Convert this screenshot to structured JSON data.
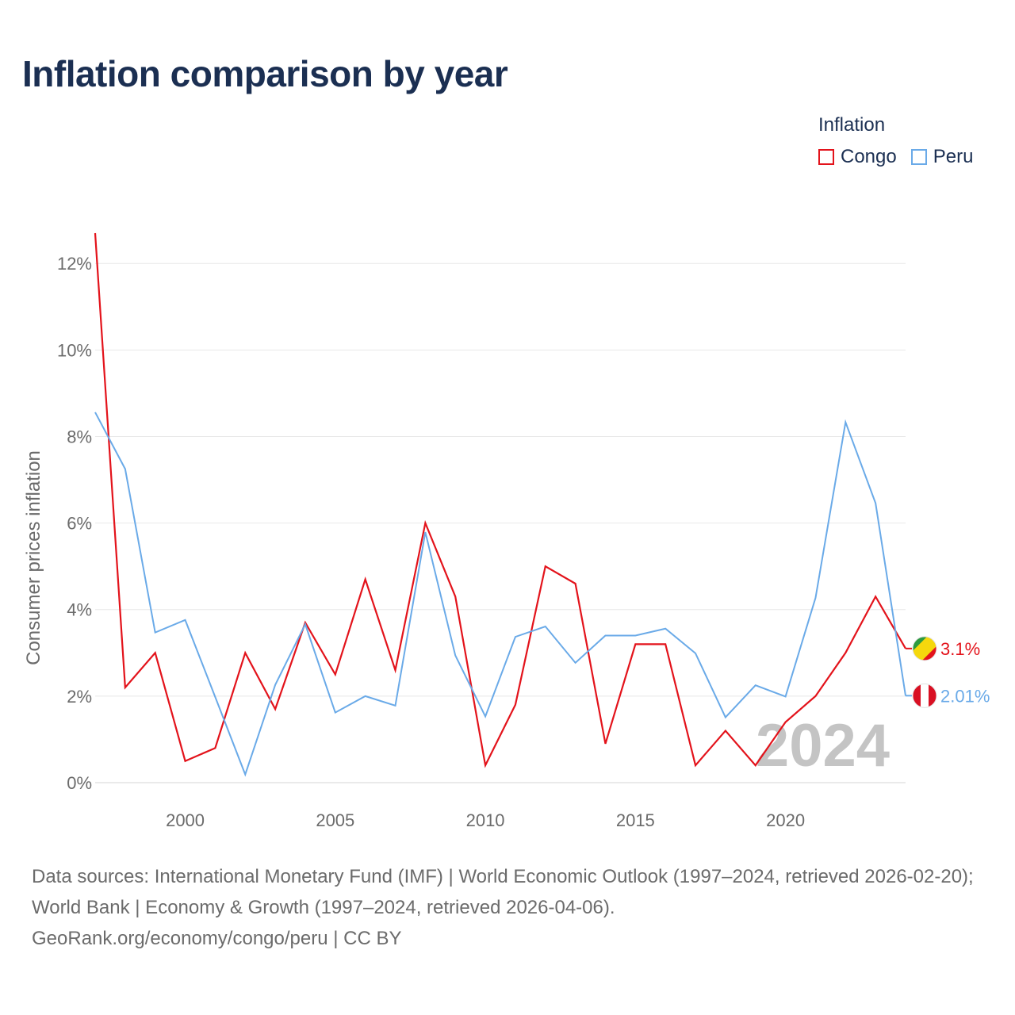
{
  "title": "Inflation comparison by year",
  "legend": {
    "title": "Inflation",
    "items": [
      {
        "label": "Congo",
        "color": "#e3131b"
      },
      {
        "label": "Peru",
        "color": "#6aaae8"
      }
    ]
  },
  "year_label": "2024",
  "footer": {
    "sources": "Data sources: International Monetary Fund (IMF) | World Economic Outlook (1997–2024, retrieved 2026-02-20); World Bank | Economy & Growth (1997–2024, retrieved 2026-04-06).",
    "credit": "GeoRank.org/economy/congo/peru | CC BY"
  },
  "chart_data": {
    "type": "line",
    "title": "Inflation comparison by year",
    "xlabel": "",
    "ylabel": "Consumer prices inflation",
    "x": [
      1997,
      1998,
      1999,
      2000,
      2001,
      2002,
      2003,
      2004,
      2005,
      2006,
      2007,
      2008,
      2009,
      2010,
      2011,
      2012,
      2013,
      2014,
      2015,
      2016,
      2017,
      2018,
      2019,
      2020,
      2021,
      2022,
      2023,
      2024
    ],
    "xlim": [
      1997,
      2024
    ],
    "ylim": [
      0,
      12.7
    ],
    "x_ticks": [
      2000,
      2005,
      2010,
      2015,
      2020
    ],
    "x_tick_labels": [
      "2000",
      "2005",
      "2010",
      "2015",
      "2020"
    ],
    "y_ticks": [
      0,
      2,
      4,
      6,
      8,
      10,
      12
    ],
    "y_tick_labels": [
      "0%",
      "2%",
      "4%",
      "6%",
      "8%",
      "10%",
      "12%"
    ],
    "grid": true,
    "legend_position": "top-right",
    "series": [
      {
        "name": "Congo",
        "color": "#e3131b",
        "values": [
          12.7,
          2.2,
          3.0,
          0.5,
          0.8,
          3.0,
          1.7,
          3.7,
          2.5,
          4.7,
          2.6,
          6.0,
          4.3,
          0.4,
          1.8,
          5.0,
          4.6,
          0.9,
          3.2,
          3.2,
          0.4,
          1.2,
          0.4,
          1.4,
          2.0,
          3.0,
          4.3,
          3.1
        ],
        "end_label": "3.1%",
        "flag_icon": "congo-flag-icon"
      },
      {
        "name": "Peru",
        "color": "#6aaae8",
        "values": [
          8.56,
          7.25,
          3.47,
          3.76,
          1.98,
          0.19,
          2.26,
          3.66,
          1.62,
          2.0,
          1.78,
          5.79,
          2.94,
          1.53,
          3.37,
          3.61,
          2.77,
          3.4,
          3.4,
          3.56,
          2.99,
          1.51,
          2.25,
          1.99,
          4.27,
          8.33,
          6.46,
          2.01
        ],
        "end_label": "2.01%",
        "flag_icon": "peru-flag-icon"
      }
    ]
  }
}
